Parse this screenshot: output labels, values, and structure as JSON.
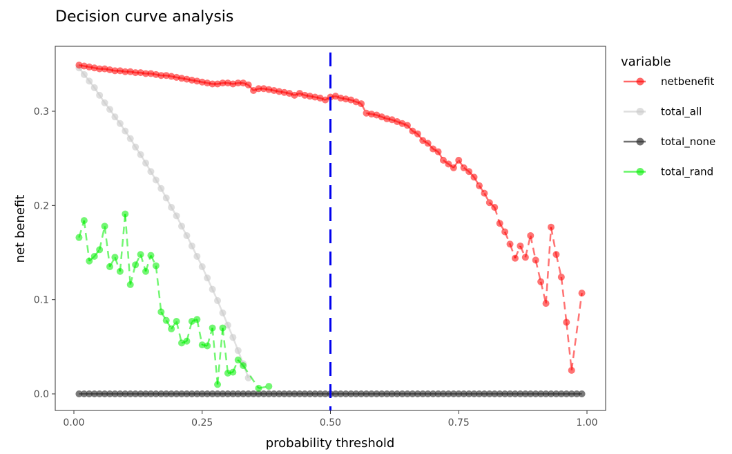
{
  "chart_data": {
    "type": "line",
    "title": "Decision curve analysis",
    "xlabel": "probability threshold",
    "ylabel": "net benefit",
    "xlim": [
      0,
      1
    ],
    "ylim": [
      -0.02,
      0.37
    ],
    "x_ticks": [
      0,
      0.25,
      0.5,
      0.75,
      1.0
    ],
    "x_tick_labels": [
      "0.00",
      "0.25",
      "0.50",
      "0.75",
      "1.00"
    ],
    "y_ticks": [
      0,
      0.1,
      0.2,
      0.3
    ],
    "y_tick_labels": [
      "0.0",
      "0.1",
      "0.2",
      "0.3"
    ],
    "vline": {
      "x": 0.5,
      "color": "#0000ee",
      "style": "dashed"
    },
    "legend": {
      "title": "variable",
      "position": "right"
    },
    "series": [
      {
        "name": "netbenefit",
        "color": "#ff0000",
        "linestyle": "dashed",
        "x": [
          0.01,
          0.02,
          0.03,
          0.04,
          0.05,
          0.06,
          0.07,
          0.08,
          0.09,
          0.1,
          0.11,
          0.12,
          0.13,
          0.14,
          0.15,
          0.16,
          0.17,
          0.18,
          0.19,
          0.2,
          0.21,
          0.22,
          0.23,
          0.24,
          0.25,
          0.26,
          0.27,
          0.28,
          0.29,
          0.3,
          0.31,
          0.32,
          0.33,
          0.34,
          0.35,
          0.36,
          0.37,
          0.38,
          0.39,
          0.4,
          0.41,
          0.42,
          0.43,
          0.44,
          0.45,
          0.46,
          0.47,
          0.48,
          0.49,
          0.5,
          0.51,
          0.52,
          0.53,
          0.54,
          0.55,
          0.56,
          0.57,
          0.58,
          0.59,
          0.6,
          0.61,
          0.62,
          0.63,
          0.64,
          0.65,
          0.66,
          0.67,
          0.68,
          0.69,
          0.7,
          0.71,
          0.72,
          0.73,
          0.74,
          0.75,
          0.76,
          0.77,
          0.78,
          0.79,
          0.8,
          0.81,
          0.82,
          0.83,
          0.84,
          0.85,
          0.86,
          0.87,
          0.88,
          0.89,
          0.9,
          0.91,
          0.92,
          0.93,
          0.94,
          0.95,
          0.96,
          0.97,
          0.99
        ],
        "values": [
          0.349,
          0.348,
          0.347,
          0.346,
          0.345,
          0.345,
          0.344,
          0.343,
          0.343,
          0.342,
          0.342,
          0.341,
          0.341,
          0.34,
          0.34,
          0.339,
          0.338,
          0.338,
          0.337,
          0.336,
          0.335,
          0.334,
          0.333,
          0.332,
          0.331,
          0.33,
          0.329,
          0.329,
          0.33,
          0.33,
          0.329,
          0.33,
          0.33,
          0.328,
          0.322,
          0.324,
          0.324,
          0.323,
          0.322,
          0.321,
          0.32,
          0.319,
          0.317,
          0.319,
          0.317,
          0.316,
          0.315,
          0.314,
          0.312,
          0.315,
          0.316,
          0.314,
          0.313,
          0.312,
          0.31,
          0.308,
          0.298,
          0.297,
          0.296,
          0.294,
          0.292,
          0.291,
          0.289,
          0.287,
          0.285,
          0.279,
          0.276,
          0.269,
          0.266,
          0.26,
          0.257,
          0.248,
          0.244,
          0.24,
          0.248,
          0.24,
          0.236,
          0.23,
          0.221,
          0.213,
          0.203,
          0.198,
          0.181,
          0.172,
          0.159,
          0.144,
          0.157,
          0.145,
          0.168,
          0.142,
          0.119,
          0.096,
          0.177,
          0.148,
          0.124,
          0.076,
          0.025,
          0.107
        ]
      },
      {
        "name": "total_all",
        "color": "#c8c8c8",
        "linestyle": "solid",
        "x": [
          0.01,
          0.02,
          0.03,
          0.04,
          0.05,
          0.06,
          0.07,
          0.08,
          0.09,
          0.1,
          0.11,
          0.12,
          0.13,
          0.14,
          0.15,
          0.16,
          0.17,
          0.18,
          0.19,
          0.2,
          0.21,
          0.22,
          0.23,
          0.24,
          0.25,
          0.26,
          0.27,
          0.28,
          0.29,
          0.3,
          0.31,
          0.32,
          0.33,
          0.34
        ],
        "values": [
          0.346,
          0.339,
          0.332,
          0.325,
          0.317,
          0.309,
          0.302,
          0.294,
          0.287,
          0.279,
          0.271,
          0.262,
          0.254,
          0.245,
          0.236,
          0.227,
          0.218,
          0.208,
          0.198,
          0.189,
          0.178,
          0.168,
          0.157,
          0.146,
          0.135,
          0.123,
          0.111,
          0.099,
          0.086,
          0.073,
          0.06,
          0.046,
          0.032,
          0.017
        ]
      },
      {
        "name": "total_none",
        "color": "#333333",
        "linestyle": "solid",
        "x_start": 0.01,
        "x_end": 0.99,
        "x_step": 0.01,
        "constant": 0
      },
      {
        "name": "total_rand",
        "color": "#00ee00",
        "linestyle": "dashed",
        "x": [
          0.01,
          0.02,
          0.03,
          0.04,
          0.05,
          0.06,
          0.07,
          0.08,
          0.09,
          0.1,
          0.11,
          0.12,
          0.13,
          0.14,
          0.15,
          0.16,
          0.17,
          0.18,
          0.19,
          0.2,
          0.21,
          0.22,
          0.23,
          0.24,
          0.25,
          0.26,
          0.27,
          0.28,
          0.29,
          0.3,
          0.31,
          0.32,
          0.33,
          0.36,
          0.38
        ],
        "values": [
          0.166,
          0.184,
          0.141,
          0.146,
          0.153,
          0.178,
          0.135,
          0.145,
          0.13,
          0.191,
          0.116,
          0.137,
          0.148,
          0.13,
          0.147,
          0.136,
          0.087,
          0.078,
          0.069,
          0.077,
          0.054,
          0.056,
          0.077,
          0.079,
          0.052,
          0.051,
          0.07,
          0.01,
          0.07,
          0.022,
          0.023,
          0.036,
          0.03,
          0.006,
          0.008
        ]
      }
    ]
  }
}
